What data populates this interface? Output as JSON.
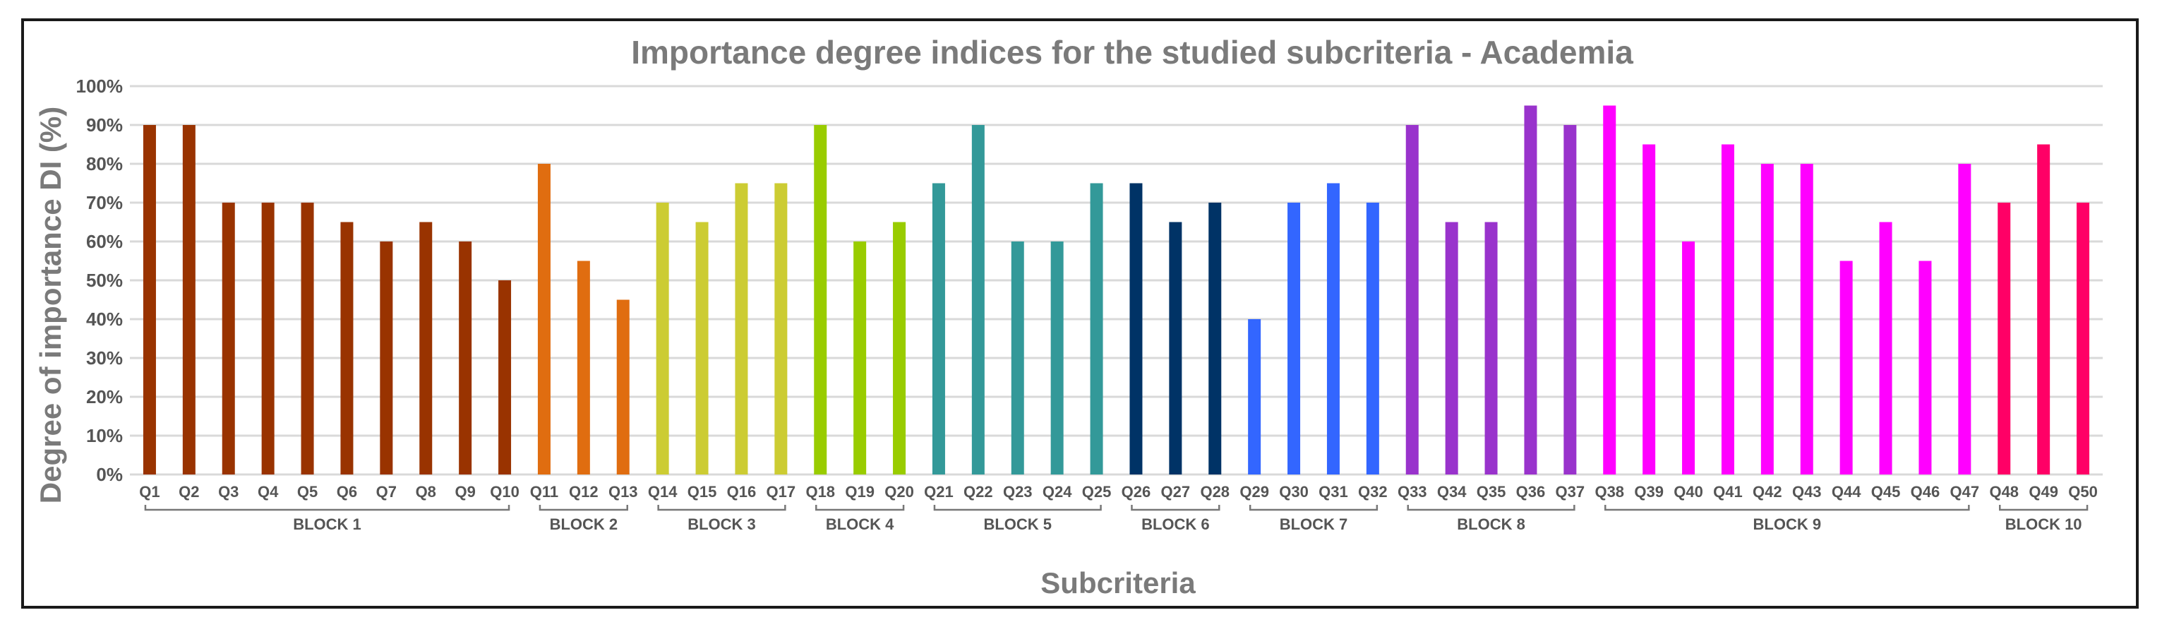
{
  "chart_data": {
    "type": "bar",
    "title": "Importance degree indices for the studied subcriteria -  Academia",
    "xlabel": "Subcriteria",
    "ylabel": "Degree of importance DI (%)",
    "ylim": [
      0,
      100
    ],
    "yticks": [
      "0%",
      "10%",
      "20%",
      "30%",
      "40%",
      "50%",
      "60%",
      "70%",
      "80%",
      "90%",
      "100%"
    ],
    "grid": true,
    "categories": [
      "Q1",
      "Q2",
      "Q3",
      "Q4",
      "Q5",
      "Q6",
      "Q7",
      "Q8",
      "Q9",
      "Q10",
      "Q11",
      "Q12",
      "Q13",
      "Q14",
      "Q15",
      "Q16",
      "Q17",
      "Q18",
      "Q19",
      "Q20",
      "Q21",
      "Q22",
      "Q23",
      "Q24",
      "Q25",
      "Q26",
      "Q27",
      "Q28",
      "Q29",
      "Q30",
      "Q31",
      "Q32",
      "Q33",
      "Q34",
      "Q35",
      "Q36",
      "Q37",
      "Q38",
      "Q39",
      "Q40",
      "Q41",
      "Q42",
      "Q43",
      "Q44",
      "Q45",
      "Q46",
      "Q47",
      "Q48",
      "Q49",
      "Q50"
    ],
    "values": [
      90,
      90,
      70,
      70,
      70,
      65,
      60,
      65,
      60,
      50,
      80,
      55,
      45,
      70,
      65,
      75,
      75,
      90,
      60,
      65,
      75,
      90,
      60,
      60,
      75,
      75,
      65,
      70,
      40,
      70,
      75,
      70,
      90,
      65,
      65,
      95,
      90,
      95,
      85,
      60,
      85,
      80,
      80,
      55,
      65,
      55,
      80,
      70,
      85,
      70
    ],
    "blocks": [
      {
        "label": "BLOCK 1",
        "start": 0,
        "end": 9,
        "color": "#993300"
      },
      {
        "label": "BLOCK 2",
        "start": 10,
        "end": 12,
        "color": "#e06d10"
      },
      {
        "label": "BLOCK 3",
        "start": 13,
        "end": 16,
        "color": "#cccc33"
      },
      {
        "label": "BLOCK 4",
        "start": 17,
        "end": 19,
        "color": "#99cc00"
      },
      {
        "label": "BLOCK 5",
        "start": 20,
        "end": 24,
        "color": "#339999"
      },
      {
        "label": "BLOCK 6",
        "start": 25,
        "end": 27,
        "color": "#003366"
      },
      {
        "label": "BLOCK 7",
        "start": 28,
        "end": 31,
        "color": "#3366ff"
      },
      {
        "label": "BLOCK 8",
        "start": 32,
        "end": 36,
        "color": "#9933cc"
      },
      {
        "label": "BLOCK 9",
        "start": 37,
        "end": 46,
        "color": "#ff00ff"
      },
      {
        "label": "BLOCK 10",
        "start": 47,
        "end": 49,
        "color": "#ff0066"
      }
    ]
  }
}
